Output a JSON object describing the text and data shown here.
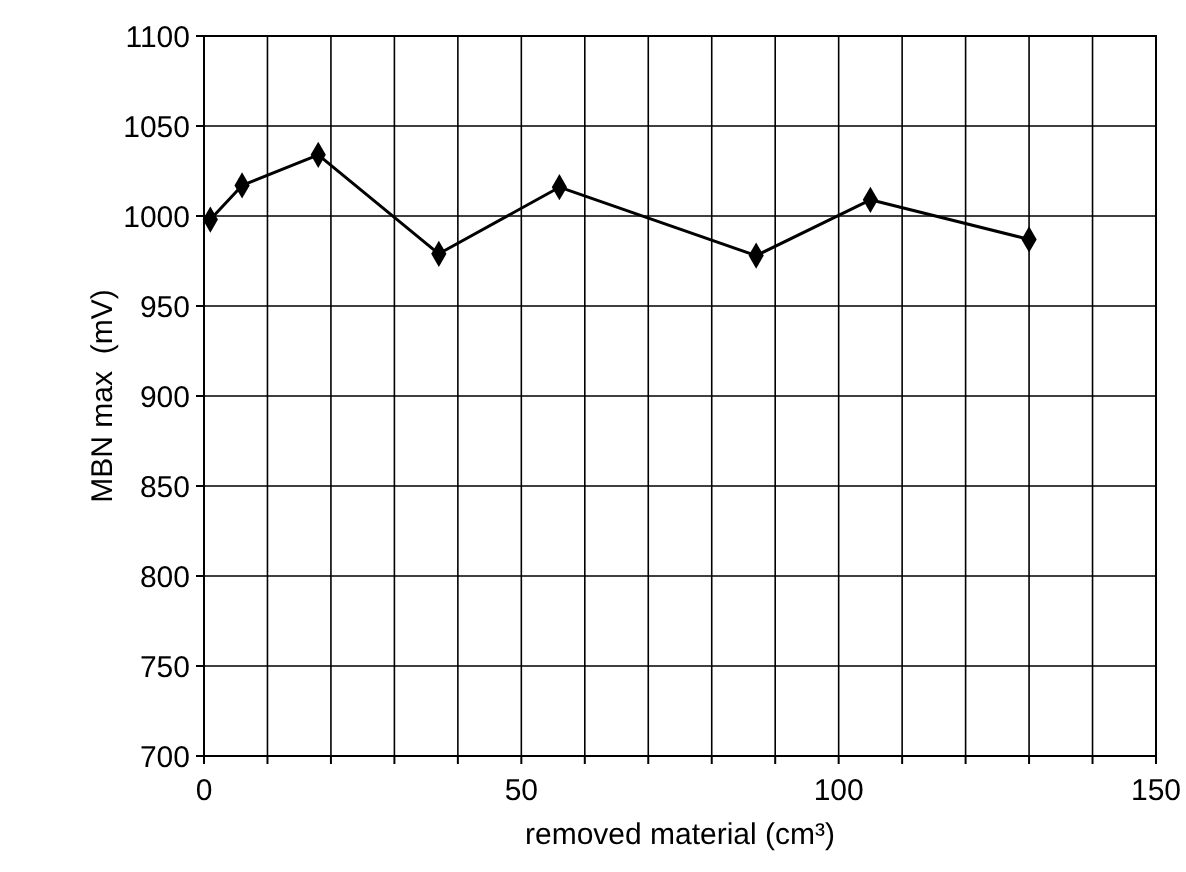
{
  "chart_data": {
    "type": "line",
    "xlabel": "removed material (cm³)",
    "ylabel": "MBN max  (mV)",
    "x": [
      1,
      6,
      18,
      37,
      56,
      87,
      105,
      130
    ],
    "series": [
      {
        "color": "#000000",
        "values": [
          998,
          1017,
          1034,
          979,
          1016,
          978,
          1009,
          987
        ]
      }
    ],
    "xlim": [
      0,
      150
    ],
    "xticks": [
      0,
      {
        "value": 10,
        "label": null
      },
      {
        "value": 20,
        "label": null
      },
      {
        "value": 30,
        "label": null
      },
      {
        "value": 40,
        "label": null
      },
      50,
      {
        "value": 60,
        "label": null
      },
      {
        "value": 70,
        "label": null
      },
      {
        "value": 80,
        "label": null
      },
      {
        "value": 90,
        "label": null
      },
      100,
      {
        "value": 110,
        "label": null
      },
      {
        "value": 120,
        "label": null
      },
      {
        "value": 130,
        "label": null
      },
      {
        "value": 140,
        "label": null
      },
      150
    ],
    "ylim": [
      700,
      1100
    ],
    "yticks": [
      700,
      750,
      800,
      850,
      900,
      950,
      1000,
      1050,
      1100
    ],
    "grid": true,
    "marker": "diamond",
    "line_style": "solid"
  }
}
